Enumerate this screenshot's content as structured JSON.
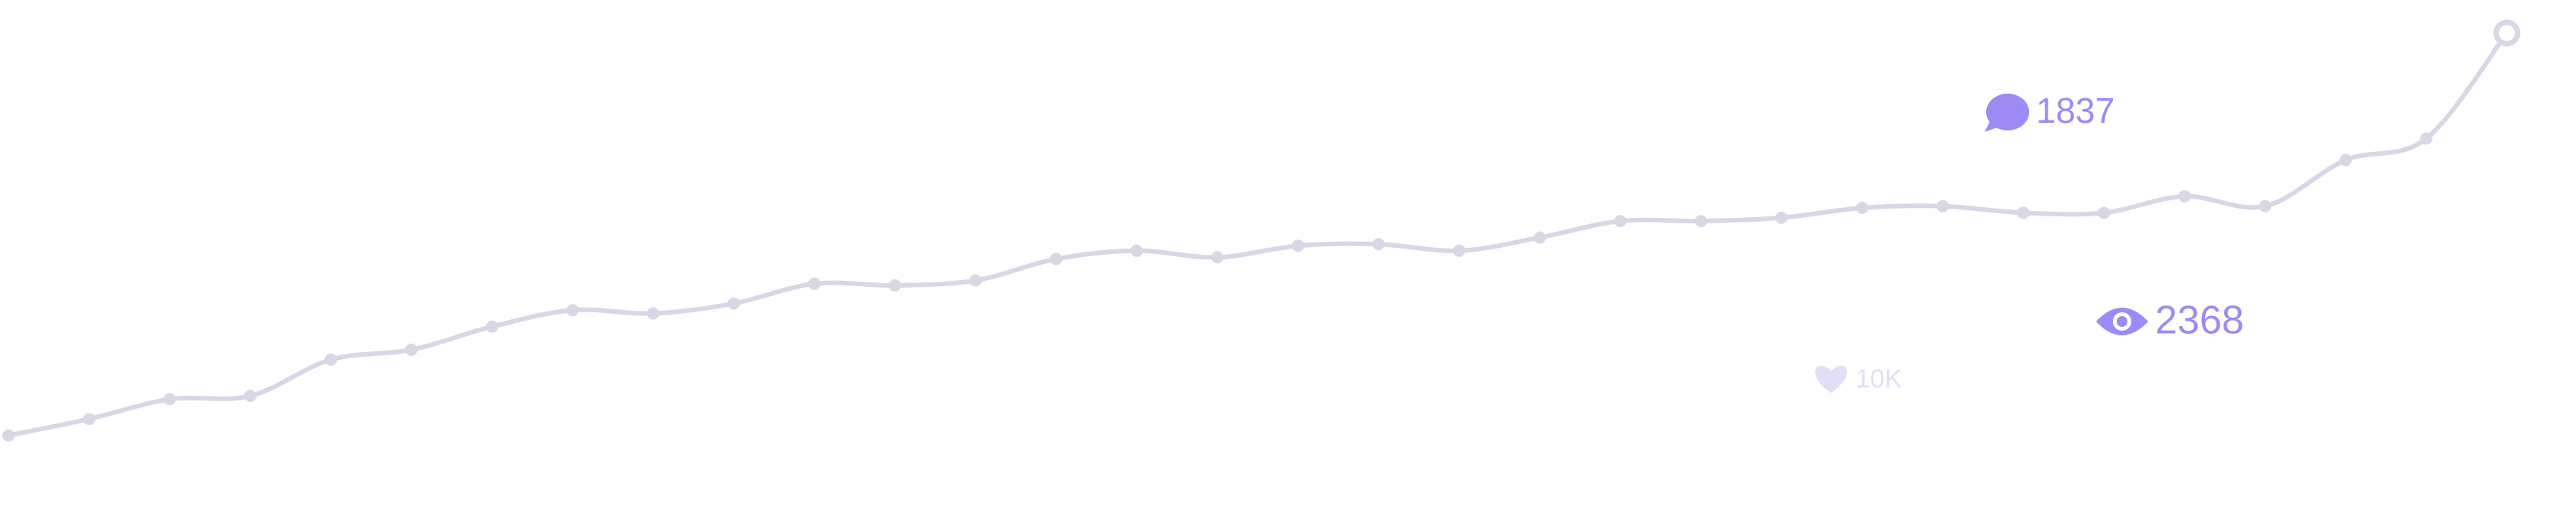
{
  "chart_data": {
    "type": "line",
    "categories": [
      null,
      null,
      null,
      null,
      null,
      null,
      null,
      null,
      null,
      null,
      null,
      null,
      null,
      null,
      null,
      null,
      null,
      null,
      null,
      null,
      null,
      null,
      null,
      null,
      null,
      null,
      null,
      null,
      null,
      null,
      null,
      null
    ],
    "series": [
      {
        "color": "#d9d7e5",
        "values": [
          36,
          46,
          58,
          60,
          82,
          88,
          102,
          112,
          110,
          116,
          128,
          127,
          130,
          143,
          148,
          144,
          151,
          152,
          148,
          156,
          166,
          166,
          168,
          174,
          175,
          171,
          171,
          181,
          175,
          203,
          216,
          280
        ]
      }
    ],
    "ylim": [
      0,
      300
    ],
    "annotations": [
      {
        "icon": "comment",
        "text": "1837",
        "color": "#9d8af4"
      },
      {
        "icon": "eye",
        "text": "2368",
        "color": "#9d8af4"
      },
      {
        "icon": "heart",
        "text": "10K",
        "color": "#e3def8"
      }
    ]
  }
}
